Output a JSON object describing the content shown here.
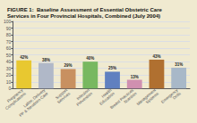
{
  "chart_data": {
    "type": "bar",
    "title": "FIGURE 1:  Baseline Assessment of Essential Obstetric Care\nServices in Four Provincial Hospitals, Combined (July 2004)",
    "categories": [
      "Pregnancy\nComplications",
      "Labor, Delivery\nPP & Newborn Care",
      "Support\nServices",
      "Infection\nPrevention",
      "Health\nEducation",
      "Breast Practices\nNutrition",
      "Management\nSystems",
      "Emergency\nDrills"
    ],
    "values": [
      42,
      38,
      29,
      40,
      25,
      13,
      43,
      31
    ],
    "value_labels": [
      "42%",
      "38%",
      "29%",
      "40%",
      "25%",
      "13%",
      "43%",
      "31%"
    ],
    "colors": [
      "#e8c830",
      "#b0b8c8",
      "#c89060",
      "#78b860",
      "#6080c0",
      "#d090b0",
      "#b07030",
      "#a8b8c8"
    ],
    "ylim": [
      0,
      100
    ],
    "yticks": [
      0,
      10,
      20,
      30,
      40,
      50,
      60,
      70,
      80,
      90,
      100
    ],
    "grid": true,
    "data_labels": true
  }
}
